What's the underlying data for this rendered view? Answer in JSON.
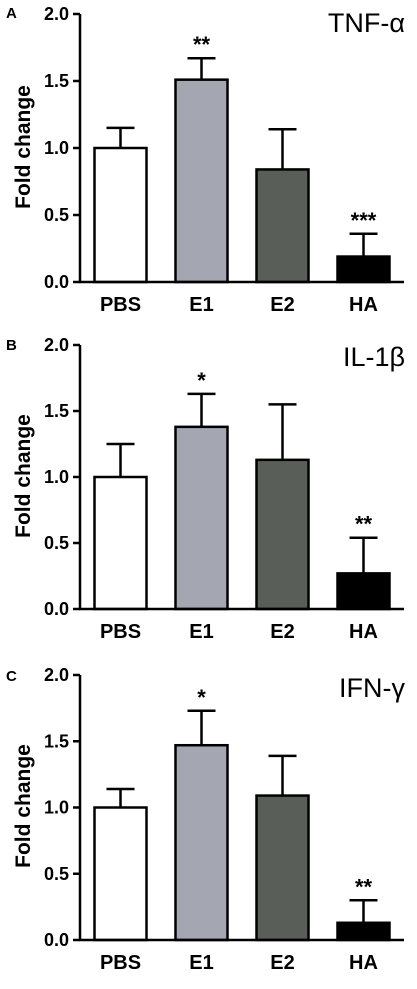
{
  "chart_data": [
    {
      "type": "bar",
      "panel": "A",
      "title": "TNF-α",
      "ylabel": "Fold change",
      "ylim": [
        0,
        2.0
      ],
      "yticks": [
        "0.0",
        "0.5",
        "1.0",
        "1.5",
        "2.0"
      ],
      "categories": [
        "PBS",
        "E1",
        "E2",
        "HA"
      ],
      "values": [
        1.0,
        1.51,
        0.84,
        0.19
      ],
      "errors": [
        0.15,
        0.16,
        0.3,
        0.17
      ],
      "significance": [
        "",
        "**",
        "",
        "***"
      ],
      "bar_colors": [
        "#ffffff",
        "#a4a6b1",
        "#5a5e58",
        "#000000"
      ],
      "grid": false,
      "legend": "none"
    },
    {
      "type": "bar",
      "panel": "B",
      "title": "IL-1β",
      "ylabel": "Fold change",
      "ylim": [
        0,
        2.0
      ],
      "yticks": [
        "0.0",
        "0.5",
        "1.0",
        "1.5",
        "2.0"
      ],
      "categories": [
        "PBS",
        "E1",
        "E2",
        "HA"
      ],
      "values": [
        1.0,
        1.38,
        1.13,
        0.27
      ],
      "errors": [
        0.25,
        0.25,
        0.42,
        0.27
      ],
      "significance": [
        "",
        "*",
        "",
        "**"
      ],
      "bar_colors": [
        "#ffffff",
        "#a4a6b1",
        "#5a5e58",
        "#000000"
      ],
      "grid": false,
      "legend": "none"
    },
    {
      "type": "bar",
      "panel": "C",
      "title": "IFN-γ",
      "ylabel": "Fold change",
      "ylim": [
        0,
        2.0
      ],
      "yticks": [
        "0.0",
        "0.5",
        "1.0",
        "1.5",
        "2.0"
      ],
      "categories": [
        "PBS",
        "E1",
        "E2",
        "HA"
      ],
      "values": [
        1.0,
        1.47,
        1.09,
        0.13
      ],
      "errors": [
        0.14,
        0.26,
        0.3,
        0.17
      ],
      "significance": [
        "",
        "*",
        "",
        "**"
      ],
      "bar_colors": [
        "#ffffff",
        "#a4a6b1",
        "#5a5e58",
        "#000000"
      ],
      "grid": false,
      "legend": "none"
    }
  ]
}
